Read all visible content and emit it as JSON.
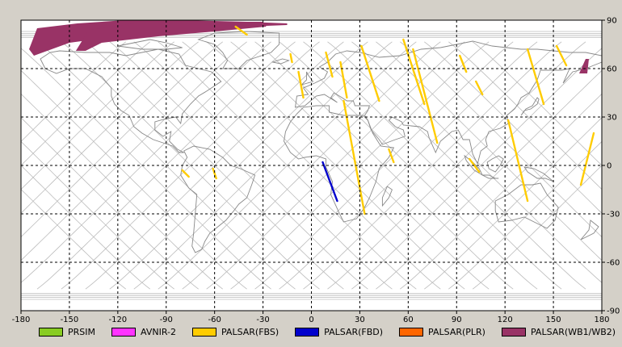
{
  "chart_data": {
    "type": "map",
    "projection": "equirectangular",
    "xlim": [
      -180,
      180
    ],
    "ylim": [
      -90,
      90
    ],
    "x_ticks": [
      -180,
      -150,
      -120,
      -90,
      -60,
      -30,
      0,
      30,
      60,
      90,
      120,
      150,
      180
    ],
    "y_ticks": [
      90,
      60,
      30,
      0,
      -30,
      -60,
      -90
    ],
    "grid": "dashed",
    "legend_placement": "bottom",
    "legend": [
      {
        "label": "PRSIM",
        "color": "#88cc22"
      },
      {
        "label": "AVNIR-2",
        "color": "#ff33ff"
      },
      {
        "label": "PALSAR(FBS)",
        "color": "#ffcc00"
      },
      {
        "label": "PALSAR(FBD)",
        "color": "#0000cc"
      },
      {
        "label": "PALSAR(PLR)",
        "color": "#ff6600"
      },
      {
        "label": "PALSAR(WB1/WB2)",
        "color": "#993366"
      }
    ],
    "colors": {
      "map_bg": "#ffffff",
      "coast": "#888888",
      "orbit": "#bbbbbb",
      "frame": "#000000"
    },
    "segments": [
      {
        "sensor": "PALSAR(FBS)",
        "points": [
          [
            -13,
            69
          ],
          [
            -12,
            64
          ]
        ]
      },
      {
        "sensor": "PALSAR(FBS)",
        "points": [
          [
            -8,
            58
          ],
          [
            -5,
            42
          ]
        ]
      },
      {
        "sensor": "PALSAR(FBS)",
        "points": [
          [
            9,
            70
          ],
          [
            13,
            55
          ]
        ]
      },
      {
        "sensor": "PALSAR(FBS)",
        "points": [
          [
            18,
            64
          ],
          [
            22,
            42
          ]
        ]
      },
      {
        "sensor": "PALSAR(FBS)",
        "points": [
          [
            20,
            40
          ],
          [
            33,
            -30
          ]
        ]
      },
      {
        "sensor": "PALSAR(FBS)",
        "points": [
          [
            31,
            74
          ],
          [
            42,
            40
          ]
        ]
      },
      {
        "sensor": "PALSAR(FBS)",
        "points": [
          [
            57,
            78
          ],
          [
            70,
            38
          ]
        ]
      },
      {
        "sensor": "PALSAR(FBS)",
        "points": [
          [
            63,
            72
          ],
          [
            78,
            14
          ]
        ]
      },
      {
        "sensor": "PALSAR(FBS)",
        "points": [
          [
            92,
            68
          ],
          [
            96,
            58
          ]
        ]
      },
      {
        "sensor": "PALSAR(FBS)",
        "points": [
          [
            102,
            52
          ],
          [
            106,
            44
          ]
        ]
      },
      {
        "sensor": "PALSAR(FBS)",
        "points": [
          [
            134,
            72
          ],
          [
            144,
            38
          ]
        ]
      },
      {
        "sensor": "PALSAR(FBS)",
        "points": [
          [
            122,
            28
          ],
          [
            134,
            -22
          ]
        ]
      },
      {
        "sensor": "PALSAR(FBS)",
        "points": [
          [
            152,
            74
          ],
          [
            158,
            62
          ]
        ]
      },
      {
        "sensor": "PALSAR(FBS)",
        "points": [
          [
            175,
            20
          ],
          [
            167,
            -12
          ]
        ]
      },
      {
        "sensor": "PALSAR(FBS)",
        "points": [
          [
            -47,
            86
          ],
          [
            -40,
            81
          ]
        ]
      },
      {
        "sensor": "PALSAR(FBS)",
        "points": [
          [
            -80,
            -3
          ],
          [
            -76,
            -7
          ]
        ]
      },
      {
        "sensor": "PALSAR(FBS)",
        "points": [
          [
            -61,
            -2
          ],
          [
            -59,
            -8
          ]
        ]
      },
      {
        "sensor": "PALSAR(FBS)",
        "points": [
          [
            48,
            10
          ],
          [
            51,
            2
          ]
        ]
      },
      {
        "sensor": "PALSAR(FBS)",
        "points": [
          [
            98,
            4
          ],
          [
            104,
            -4
          ]
        ]
      },
      {
        "sensor": "PALSAR(FBD)",
        "points": [
          [
            7,
            2
          ],
          [
            16,
            -22
          ]
        ]
      }
    ],
    "wb_swaths": [
      {
        "sensor": "PALSAR(WB1/WB2)",
        "polygon": [
          [
            -175,
            72
          ],
          [
            -170,
            85
          ],
          [
            -145,
            88
          ],
          [
            -115,
            90
          ],
          [
            -80,
            90
          ],
          [
            -40,
            89
          ],
          [
            -15,
            88
          ],
          [
            -15,
            87
          ],
          [
            -40,
            86
          ],
          [
            -80,
            85
          ],
          [
            -120,
            80
          ],
          [
            -150,
            76
          ],
          [
            -172,
            68
          ]
        ]
      },
      {
        "sensor": "PALSAR(WB1/WB2)",
        "polygon": [
          [
            -146,
            71
          ],
          [
            -138,
            84
          ],
          [
            -110,
            88
          ],
          [
            -80,
            89
          ],
          [
            -30,
            89
          ],
          [
            -28,
            86
          ],
          [
            -60,
            83
          ],
          [
            -95,
            80
          ],
          [
            -130,
            76
          ],
          [
            -140,
            71
          ]
        ]
      },
      {
        "sensor": "PALSAR(WB1/WB2)",
        "polygon": [
          [
            166,
            57
          ],
          [
            170,
            66
          ],
          [
            172,
            66
          ],
          [
            171,
            57
          ]
        ]
      }
    ]
  }
}
